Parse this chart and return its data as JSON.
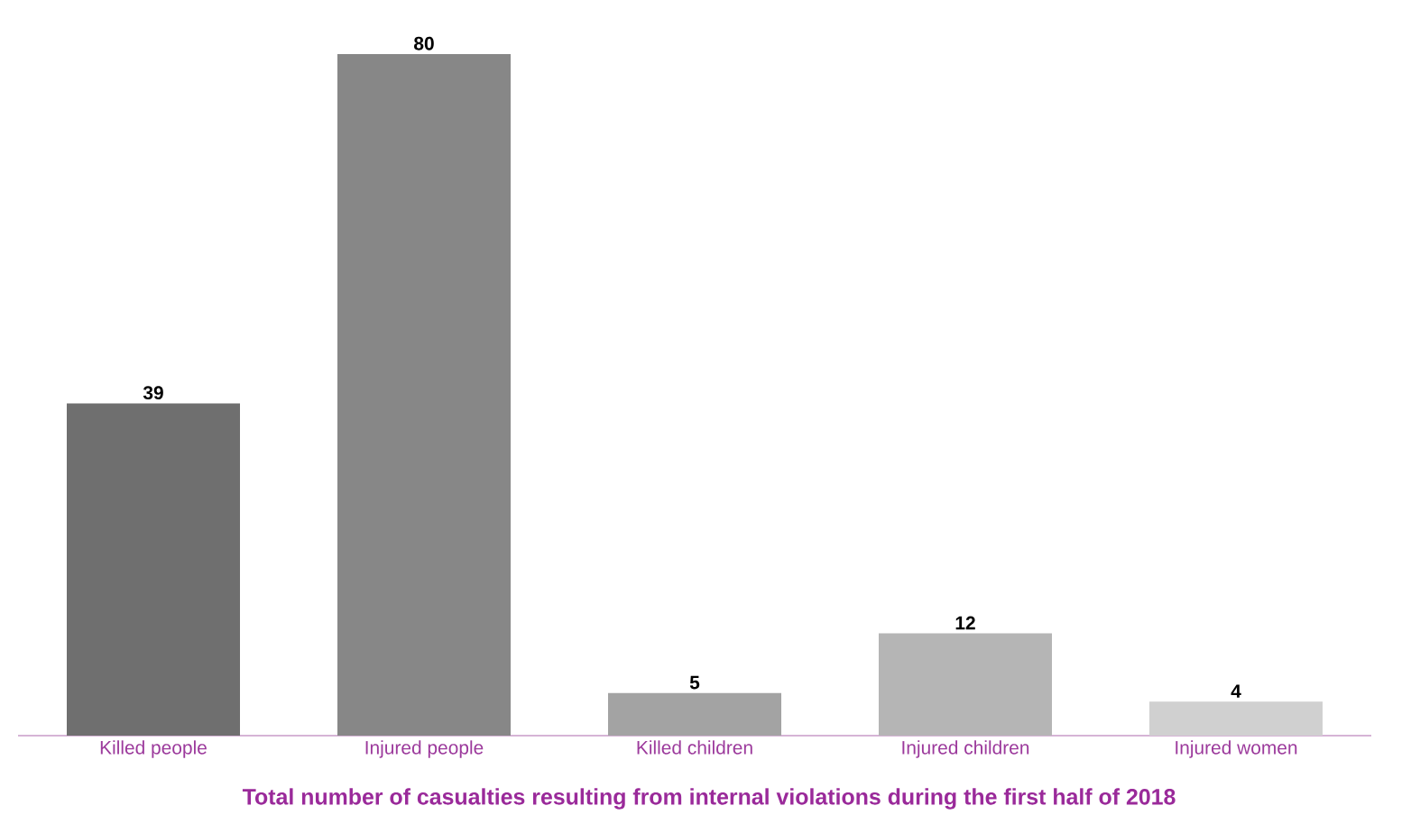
{
  "chart_data": {
    "type": "bar",
    "title": "Total number of casualties resulting from internal violations during the first half of 2018",
    "categories": [
      "Killed people",
      "Injured people",
      "Killed children",
      "Injured children",
      "Injured women"
    ],
    "values": [
      39,
      80,
      5,
      12,
      4
    ],
    "colors": [
      "#6f6f6f",
      "#878787",
      "#a3a3a3",
      "#b5b5b5",
      "#d0d0d0"
    ],
    "data_labels": true,
    "tick_labels": "x"
  }
}
